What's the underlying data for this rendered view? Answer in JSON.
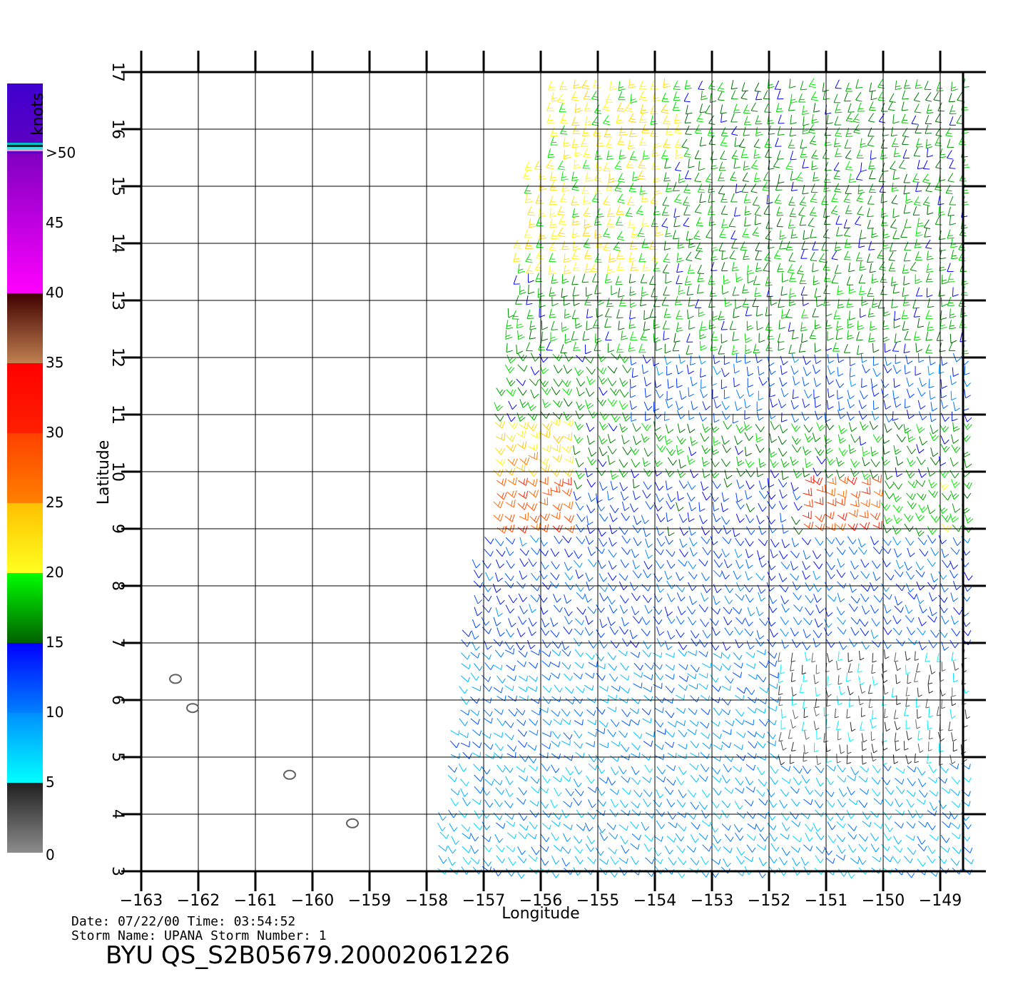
{
  "map": {
    "lon_range": [
      -163,
      -148.6
    ],
    "lat_range": [
      3,
      17
    ],
    "lon_ticks": [
      -163,
      -162,
      -161,
      -160,
      -159,
      -158,
      -157,
      -156,
      -155,
      -154,
      -153,
      -152,
      -151,
      -150,
      -149
    ],
    "lat_ticks": [
      3,
      4,
      5,
      6,
      7,
      8,
      9,
      10,
      11,
      12,
      13,
      14,
      15,
      16,
      17
    ],
    "xlabel": "Longitude",
    "ylabel": "Latitude",
    "grid": true,
    "swath_corners": [
      [
        -156.0,
        17.0
      ],
      [
        -148.6,
        17.0
      ],
      [
        -148.6,
        3.0
      ],
      [
        -158.0,
        3.0
      ]
    ],
    "islands": [
      {
        "lon": -162.4,
        "lat": 6.37
      },
      {
        "lon": -162.1,
        "lat": 5.86
      },
      {
        "lon": -160.4,
        "lat": 4.69
      },
      {
        "lon": -159.3,
        "lat": 3.84
      }
    ]
  },
  "legend": {
    "unit": "knots",
    "bins": [
      {
        "label": "0",
        "range": [
          0,
          5
        ],
        "colors": [
          "#8c8c8c",
          "#202020"
        ]
      },
      {
        "label": "5",
        "range": [
          5,
          10
        ],
        "colors": [
          "#00ffff",
          "#0090ff"
        ]
      },
      {
        "label": "10",
        "range": [
          10,
          15
        ],
        "colors": [
          "#0080ff",
          "#0000ff"
        ]
      },
      {
        "label": "15",
        "range": [
          15,
          20
        ],
        "colors": [
          "#006000",
          "#00ff00"
        ]
      },
      {
        "label": "20",
        "range": [
          20,
          25
        ],
        "colors": [
          "#ffff20",
          "#ffc000"
        ]
      },
      {
        "label": "25",
        "range": [
          25,
          30
        ],
        "colors": [
          "#ff8000",
          "#ff4000"
        ]
      },
      {
        "label": "30",
        "range": [
          30,
          35
        ],
        "colors": [
          "#ff2000",
          "#ff0000"
        ]
      },
      {
        "label": "35",
        "range": [
          35,
          40
        ],
        "colors": [
          "#c08050",
          "#400000"
        ]
      },
      {
        "label": "40",
        "range": [
          40,
          50
        ],
        "colors": [
          "#ff00ff",
          "#8000c0"
        ]
      },
      {
        "label": "45",
        "range": null,
        "colors": null
      },
      {
        "label": ">50",
        "range": [
          50,
          55
        ],
        "colors": [
          "#6000c0",
          "#4000d0"
        ]
      }
    ]
  },
  "wind_regions": [
    {
      "lat": [
        15.5,
        17.0
      ],
      "lon": [
        -156,
        -153.5
      ],
      "speed": 21,
      "dir": 250
    },
    {
      "lat": [
        15.5,
        17.0
      ],
      "lon": [
        -153.5,
        -148.6
      ],
      "speed": 17,
      "dir": 250
    },
    {
      "lat": [
        13.5,
        15.5
      ],
      "lon": [
        -157,
        -154
      ],
      "speed": 21,
      "dir": 250
    },
    {
      "lat": [
        13.5,
        15.5
      ],
      "lon": [
        -154,
        -148.6
      ],
      "speed": 17,
      "dir": 250
    },
    {
      "lat": [
        12.2,
        13.5
      ],
      "lon": [
        -157,
        -148.6
      ],
      "speed": 17,
      "dir": 260
    },
    {
      "lat": [
        11.0,
        12.2
      ],
      "lon": [
        -157,
        -154.5
      ],
      "speed": 17,
      "dir": 300
    },
    {
      "lat": [
        11.0,
        12.2
      ],
      "lon": [
        -154.5,
        -148.6
      ],
      "speed": 12,
      "dir": 280
    },
    {
      "lat": [
        10.0,
        11.0
      ],
      "lon": [
        -157,
        -155.5
      ],
      "speed": 23,
      "dir": 320
    },
    {
      "lat": [
        10.0,
        11.0
      ],
      "lon": [
        -155.5,
        -148.6
      ],
      "speed": 17,
      "dir": 290
    },
    {
      "lat": [
        9.0,
        10.0
      ],
      "lon": [
        -157,
        -155.6
      ],
      "speed": 28,
      "dir": 330
    },
    {
      "lat": [
        9.0,
        10.0
      ],
      "lon": [
        -155.6,
        -151.5
      ],
      "speed": 13,
      "dir": 290
    },
    {
      "lat": [
        9.0,
        10.0
      ],
      "lon": [
        -151.5,
        -150.2
      ],
      "speed": 29,
      "dir": 330
    },
    {
      "lat": [
        9.0,
        10.0
      ],
      "lon": [
        -150.2,
        -148.6
      ],
      "speed": 18,
      "dir": 300
    },
    {
      "lat": [
        7.0,
        9.0
      ],
      "lon": [
        -157.5,
        -148.6
      ],
      "speed": 12,
      "dir": 300
    },
    {
      "lat": [
        5.0,
        7.0
      ],
      "lon": [
        -158,
        -152
      ],
      "speed": 10,
      "dir": 320
    },
    {
      "lat": [
        5.0,
        7.0
      ],
      "lon": [
        -152,
        -148.6
      ],
      "speed": 4,
      "dir": 270
    },
    {
      "lat": [
        3.0,
        5.0
      ],
      "lon": [
        -158,
        -148.6
      ],
      "speed": 9,
      "dir": 310
    }
  ],
  "info": {
    "date_line": "Date: 07/22/00   Time: 03:54:52",
    "storm_line": "Storm Name: UPANA   Storm Number: 1",
    "product": "BYU QS_S2B05679.20002061226"
  }
}
